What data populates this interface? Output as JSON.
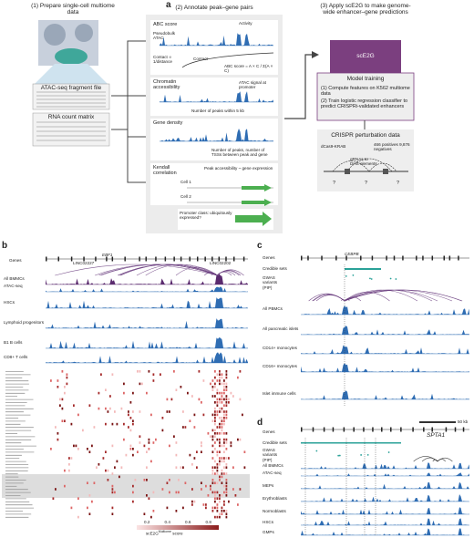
{
  "panel_a": {
    "label": "a",
    "step1": {
      "title": "(1) Prepare single-cell multiome data",
      "fragment_file": "ATAC-seq fragment file",
      "count_matrix": "RNA count matrix"
    },
    "step2": {
      "title": "(2) Annotate peak–gene pairs",
      "abc": {
        "title": "ABC score",
        "activity": "Activity",
        "pseudobulk": "Pseudobulk ATAC",
        "contact": "Contact ∝ 1/distance",
        "contact_curve": "Contact",
        "formula": "ABC score = A × C / Σ(A × C)"
      },
      "accessibility": {
        "title": "Chromatin accessibility",
        "promoter": "ATAC signal at promoter",
        "peaks": "Number of peaks within 5 kb"
      },
      "density": {
        "title": "Gene density",
        "caption": "Number of peaks, number of TSSs between peak and gene"
      },
      "kendall": {
        "title": "Kendall correlation",
        "caption": "Peak accessibility ~ gene expression",
        "cell1": "Cell 1",
        "cell2": "Cell 2"
      },
      "promoter": "Promoter class: ubiquitously expressed?"
    },
    "step3": {
      "title": "(3) Apply scE2G to make genome-wide enhancer–gene predictions",
      "model": "scE2G",
      "training": {
        "title": "Model training",
        "item1": "(1)  Compute features on K562 multiome data",
        "item2": "(2)  Train logistic regression classifier to predict CRISPRi-validated enhancers"
      },
      "crispr": {
        "title": "CRISPR perturbation data",
        "cas9": "dCas9-KRAB",
        "grna": "gRNAs to DHS elements",
        "counts": "466 positives 9,876 negatives",
        "unknown": "?"
      }
    }
  },
  "panel_b": {
    "label": "b",
    "genes_label": "Genes",
    "genes": [
      "EBF1",
      "LINC02227",
      "LINC02202"
    ],
    "tracks": [
      "All BMMCs",
      "ATAC-seq",
      "HSCs",
      "Lymphoid progenitors",
      "B1 B cells",
      "CD8+ T cells"
    ],
    "colorbar": {
      "title": "scE2G",
      "superscript": "Multiome",
      "suffix": "score",
      "ticks": [
        0.2,
        0.4,
        0.6,
        0.8
      ]
    }
  },
  "panel_c": {
    "label": "c",
    "genes_label": "Genes",
    "genes": [
      "CEBPB"
    ],
    "annotations": [
      "Credible sets",
      "GWAS variants (PIP)"
    ],
    "tracks": [
      "All PBMCs",
      "All pancreatic islets",
      "CD14+ monocytes",
      "CD16+ monocytes",
      "Islet immune cells"
    ]
  },
  "panel_d": {
    "label": "d",
    "scale": "50 kb",
    "genes_label": "Genes",
    "genes": [
      "SPTA1"
    ],
    "annotations": [
      "Credible sets",
      "GWAS variants (PIP)"
    ],
    "tracks": [
      "All BMMCs",
      "ATAC-seq",
      "MEPs",
      "Erythroblasts",
      "Normoblasts",
      "HSCs",
      "GMPs"
    ]
  }
}
